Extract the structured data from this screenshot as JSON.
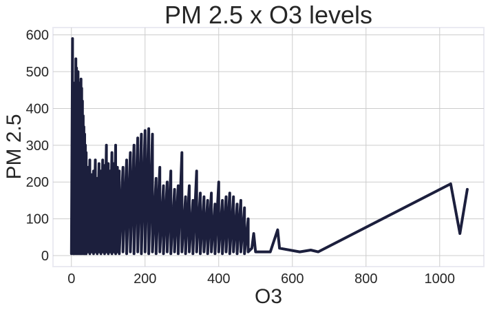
{
  "chart_data": {
    "type": "line",
    "title": "PM 2.5 x O3 levels",
    "xlabel": "O3",
    "ylabel": "PM 2.5",
    "xlim": [
      -50,
      1120
    ],
    "ylim": [
      -30,
      620
    ],
    "xticks": [
      0,
      200,
      400,
      600,
      800,
      1000
    ],
    "yticks": [
      0,
      100,
      200,
      300,
      400,
      500,
      600
    ],
    "grid": true,
    "legend": "none",
    "colors": {
      "line": "#1c1f3d",
      "grid": "#cccccc",
      "frame": "#eaeaf2"
    },
    "series": [
      {
        "x": [
          0,
          3,
          3,
          5,
          5,
          6,
          6,
          8,
          8,
          10,
          10,
          12,
          12,
          14,
          14,
          16,
          16,
          18,
          18,
          20,
          20,
          22,
          22,
          24,
          24,
          26,
          26,
          28,
          28,
          30,
          30,
          32,
          32,
          34,
          34,
          36,
          36,
          38,
          38,
          40,
          40,
          45,
          45,
          50,
          50,
          55,
          55,
          60,
          60,
          65,
          65,
          70,
          70,
          75,
          75,
          80,
          80,
          85,
          85,
          90,
          90,
          95,
          95,
          100,
          100,
          105,
          105,
          110,
          110,
          115,
          115,
          120,
          120,
          125,
          125,
          130,
          130,
          140,
          140,
          150,
          150,
          160,
          160,
          170,
          170,
          180,
          180,
          190,
          190,
          200,
          200,
          210,
          210,
          220,
          220,
          230,
          230,
          240,
          240,
          250,
          250,
          260,
          260,
          270,
          270,
          280,
          280,
          290,
          290,
          300,
          300,
          310,
          310,
          320,
          320,
          330,
          330,
          340,
          340,
          350,
          350,
          360,
          360,
          370,
          370,
          380,
          380,
          390,
          390,
          400,
          400,
          410,
          410,
          420,
          420,
          430,
          430,
          440,
          440,
          450,
          450,
          460,
          460,
          470,
          470,
          480,
          480,
          490,
          495,
          500,
          510,
          540,
          560,
          565,
          620,
          650,
          670,
          1030,
          1055,
          1075
        ],
        "y": [
          5,
          590,
          10,
          460,
          5,
          420,
          10,
          360,
          5,
          470,
          10,
          535,
          5,
          510,
          10,
          480,
          5,
          500,
          10,
          460,
          5,
          440,
          10,
          470,
          5,
          480,
          10,
          455,
          5,
          420,
          10,
          380,
          5,
          350,
          10,
          330,
          5,
          300,
          10,
          280,
          5,
          240,
          10,
          260,
          5,
          220,
          10,
          230,
          5,
          260,
          10,
          210,
          5,
          250,
          10,
          230,
          5,
          260,
          10,
          245,
          5,
          300,
          10,
          250,
          5,
          230,
          10,
          280,
          5,
          250,
          10,
          300,
          5,
          240,
          10,
          230,
          5,
          240,
          10,
          260,
          5,
          280,
          10,
          300,
          5,
          320,
          10,
          330,
          5,
          340,
          10,
          345,
          5,
          330,
          10,
          210,
          5,
          240,
          10,
          190,
          5,
          200,
          10,
          230,
          5,
          180,
          10,
          190,
          5,
          280,
          10,
          160,
          5,
          190,
          10,
          150,
          5,
          230,
          10,
          170,
          5,
          160,
          10,
          150,
          5,
          170,
          10,
          140,
          5,
          200,
          10,
          150,
          5,
          160,
          10,
          170,
          5,
          160,
          10,
          140,
          5,
          150,
          10,
          130,
          5,
          100,
          10,
          20,
          60,
          10,
          10,
          10,
          70,
          20,
          10,
          15,
          10,
          195,
          60,
          180
        ]
      }
    ]
  }
}
